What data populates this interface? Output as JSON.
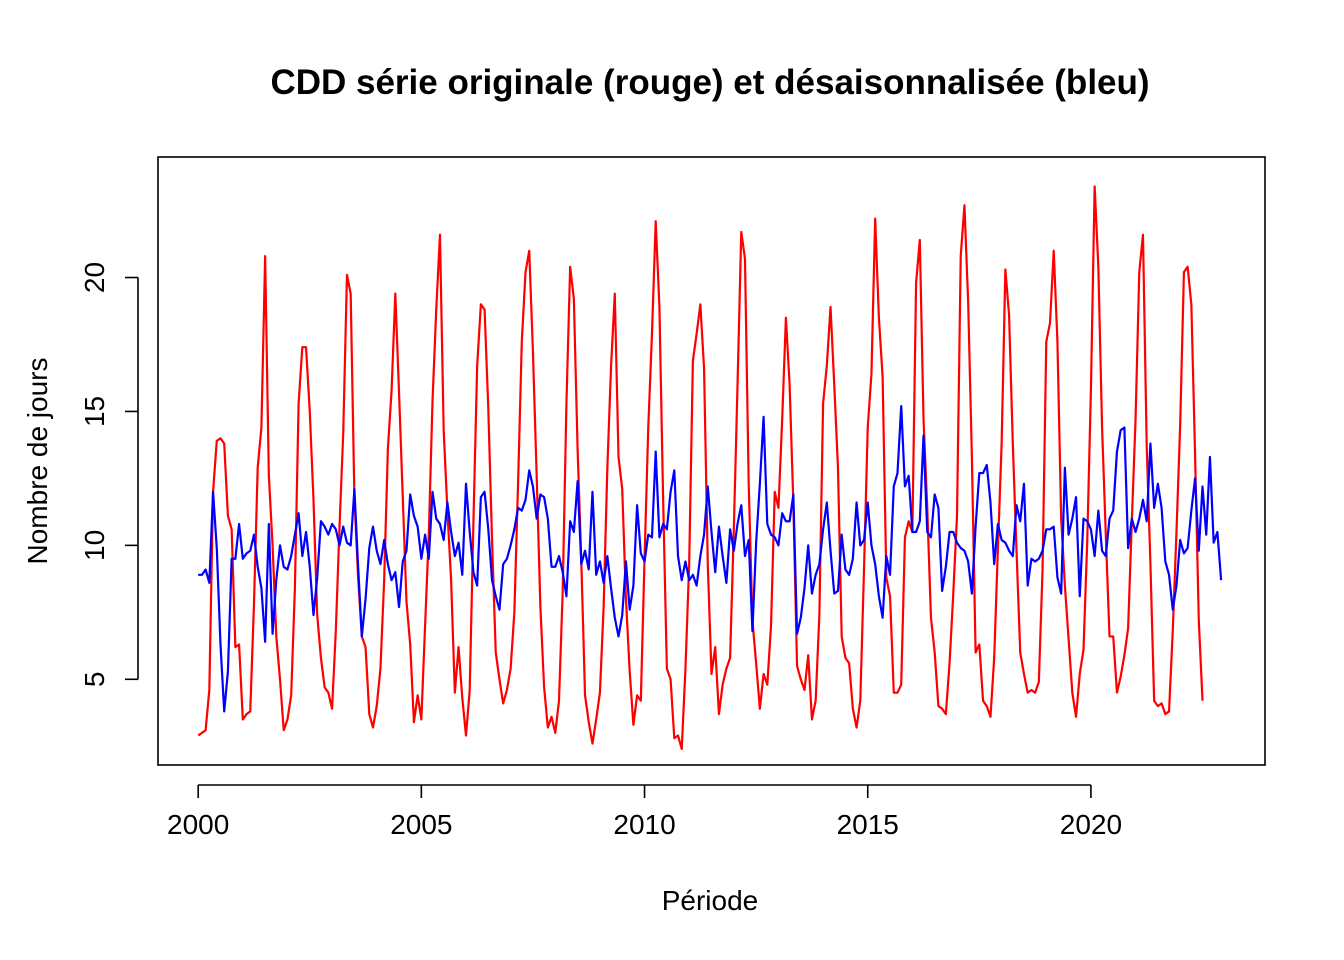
{
  "chart_data": {
    "type": "line",
    "title": "CDD série originale (rouge) et désaisonnalisée (bleu)",
    "xlabel": "Période",
    "ylabel": "Nombre de jours",
    "xlim": [
      1999.1,
      2023.9
    ],
    "ylim": [
      1.8,
      24.5
    ],
    "x_ticks": [
      2000,
      2005,
      2010,
      2015,
      2020
    ],
    "x_tick_labels": [
      "2000",
      "2005",
      "2010",
      "2015",
      "2020"
    ],
    "y_ticks": [
      5,
      10,
      15,
      20
    ],
    "y_tick_labels": [
      "5",
      "10",
      "15",
      "20"
    ],
    "x_start": 2000,
    "x_step": 0.08333333,
    "grid": false,
    "legend": "none",
    "series": [
      {
        "key": "original",
        "color": "#ff0000",
        "values": [
          2.9,
          3.0,
          3.1,
          4.6,
          12.0,
          13.9,
          14.0,
          13.8,
          11.1,
          10.6,
          6.2,
          6.3,
          3.5,
          3.7,
          3.8,
          7.8,
          12.9,
          14.4,
          20.8,
          12.6,
          10.0,
          6.6,
          5.0,
          3.1,
          3.5,
          4.4,
          8.4,
          15.3,
          17.4,
          17.4,
          15.0,
          11.7,
          7.4,
          5.8,
          4.7,
          4.5,
          3.9,
          6.8,
          10.7,
          14.2,
          20.1,
          19.4,
          11.8,
          8.8,
          6.6,
          6.2,
          3.7,
          3.2,
          4.0,
          5.4,
          8.7,
          13.6,
          15.8,
          19.4,
          15.7,
          11.8,
          7.9,
          6.3,
          3.4,
          4.4,
          3.5,
          7.0,
          10.4,
          15.4,
          18.8,
          21.6,
          14.3,
          11.3,
          8.7,
          4.5,
          6.2,
          4.3,
          2.9,
          4.6,
          10.9,
          16.7,
          19.0,
          18.8,
          15.1,
          10.2,
          6.0,
          5.0,
          4.1,
          4.6,
          5.4,
          7.5,
          12.3,
          17.6,
          20.2,
          21.0,
          17.2,
          12.6,
          7.7,
          4.7,
          3.2,
          3.6,
          3.0,
          4.2,
          8.3,
          15.3,
          20.4,
          19.2,
          13.6,
          9.4,
          4.4,
          3.4,
          2.6,
          3.5,
          4.5,
          7.7,
          12.9,
          16.7,
          19.4,
          13.3,
          12.1,
          8.0,
          5.3,
          3.3,
          4.4,
          4.2,
          9.5,
          14.4,
          17.9,
          22.1,
          18.9,
          11.7,
          5.4,
          5.0,
          2.8,
          2.9,
          2.4,
          5.4,
          9.3,
          16.9,
          17.9,
          19.0,
          16.6,
          9.3,
          5.2,
          6.2,
          3.7,
          4.8,
          5.4,
          5.8,
          10.6,
          16.0,
          21.7,
          20.7,
          12.3,
          7.2,
          5.6,
          3.9,
          5.2,
          4.8,
          7.0,
          12.0,
          11.4,
          14.7,
          18.5,
          16.0,
          11.6,
          5.5,
          5.0,
          4.6,
          5.9,
          3.5,
          4.2,
          7.4,
          15.3,
          16.7,
          18.9,
          16.0,
          12.9,
          6.6,
          5.8,
          5.6,
          3.9,
          3.2,
          4.2,
          9.1,
          14.4,
          16.4,
          22.2,
          18.5,
          16.3,
          8.8,
          8.1,
          4.5,
          4.5,
          4.8,
          10.3,
          10.9,
          10.5,
          19.8,
          21.4,
          14.7,
          11.4,
          7.3,
          6.0,
          4.0,
          3.9,
          3.7,
          5.6,
          8.2,
          11.1,
          20.8,
          22.7,
          19.1,
          13.3,
          6.0,
          6.3,
          4.2,
          4.0,
          3.6,
          5.8,
          9.9,
          13.8,
          20.3,
          18.6,
          13.8,
          9.8,
          6.0,
          5.2,
          4.5,
          4.6,
          4.5,
          4.9,
          9.1,
          17.6,
          18.3,
          21.0,
          17.6,
          11.0,
          8.5,
          6.5,
          4.5,
          3.6,
          5.2,
          6.1,
          10.1,
          15.8,
          23.4,
          20.4,
          14.4,
          10.4,
          6.6,
          6.6,
          4.5,
          5.1,
          5.9,
          6.9,
          10.9,
          14.7,
          20.2,
          21.6,
          13.7,
          9.3,
          4.2,
          4.0,
          4.1,
          3.7,
          3.8,
          6.8,
          10.5,
          14.5,
          20.2,
          20.4,
          19.0,
          13.4,
          7.2,
          4.2
        ]
      },
      {
        "key": "deseasonalized",
        "color": "#0000ff",
        "values": [
          8.9,
          8.9,
          9.1,
          8.6,
          12.0,
          9.9,
          6.3,
          3.8,
          5.3,
          9.5,
          9.5,
          10.8,
          9.5,
          9.7,
          9.8,
          10.4,
          9.2,
          8.4,
          6.4,
          10.8,
          6.7,
          8.7,
          10.0,
          9.2,
          9.1,
          9.6,
          10.4,
          11.2,
          9.6,
          10.5,
          9.2,
          7.4,
          8.8,
          10.9,
          10.7,
          10.4,
          10.8,
          10.6,
          10.0,
          10.7,
          10.1,
          10.0,
          12.1,
          9.2,
          6.6,
          8.0,
          9.9,
          10.7,
          9.8,
          9.3,
          10.2,
          9.3,
          8.7,
          9.0,
          7.7,
          9.4,
          9.8,
          11.9,
          11.1,
          10.7,
          9.5,
          10.4,
          9.5,
          12.0,
          11.0,
          10.8,
          10.2,
          11.6,
          10.5,
          9.6,
          10.1,
          8.9,
          12.3,
          10.5,
          9.0,
          8.5,
          11.8,
          12.0,
          10.6,
          8.7,
          8.1,
          7.6,
          9.3,
          9.5,
          10.0,
          10.6,
          11.4,
          11.3,
          11.7,
          12.8,
          12.2,
          11.0,
          11.9,
          11.8,
          11.0,
          9.2,
          9.2,
          9.6,
          9.0,
          8.1,
          10.9,
          10.5,
          12.4,
          9.3,
          9.8,
          9.1,
          12.0,
          8.9,
          9.4,
          8.6,
          9.6,
          8.4,
          7.3,
          6.6,
          7.4,
          9.4,
          7.6,
          8.5,
          11.5,
          9.7,
          9.4,
          10.4,
          10.3,
          13.5,
          10.3,
          10.8,
          10.6,
          12.0,
          12.8,
          9.6,
          8.7,
          9.4,
          8.7,
          8.9,
          8.5,
          9.6,
          10.4,
          12.2,
          10.5,
          9.0,
          10.7,
          9.6,
          8.6,
          10.6,
          9.8,
          10.8,
          11.5,
          9.6,
          10.2,
          6.8,
          10.1,
          12.3,
          14.8,
          10.8,
          10.4,
          10.3,
          10.0,
          11.2,
          10.9,
          10.9,
          11.9,
          6.7,
          7.3,
          8.4,
          10.0,
          8.2,
          8.9,
          9.3,
          10.6,
          11.6,
          9.8,
          8.2,
          8.3,
          10.4,
          9.1,
          8.9,
          9.5,
          11.6,
          10.0,
          10.2,
          11.6,
          10.0,
          9.3,
          8.1,
          7.3,
          9.6,
          8.9,
          12.2,
          12.7,
          15.2,
          12.2,
          12.6,
          10.5,
          10.5,
          10.9,
          14.1,
          10.5,
          10.3,
          11.9,
          11.4,
          8.3,
          9.2,
          10.5,
          10.5,
          10.1,
          9.9,
          9.8,
          9.4,
          8.2,
          10.7,
          12.7,
          12.7,
          13.0,
          11.6,
          9.3,
          10.8,
          10.2,
          10.1,
          9.8,
          9.6,
          11.5,
          10.9,
          12.3,
          8.5,
          9.5,
          9.4,
          9.5,
          9.8,
          10.6,
          10.6,
          10.7,
          8.8,
          8.2,
          12.9,
          10.4,
          11.0,
          11.8,
          8.1,
          11.0,
          10.9,
          10.6,
          9.6,
          11.3,
          9.8,
          9.6,
          11.0,
          11.3,
          13.5,
          14.3,
          14.4,
          9.9,
          11.0,
          10.5,
          11.0,
          11.7,
          10.9,
          13.8,
          11.4,
          12.3,
          11.4,
          9.4,
          8.9,
          7.6,
          8.5,
          10.2,
          9.7,
          9.9,
          11.3,
          12.5,
          9.8,
          12.2,
          10.4,
          13.3,
          10.1,
          10.5,
          8.7
        ]
      }
    ]
  }
}
